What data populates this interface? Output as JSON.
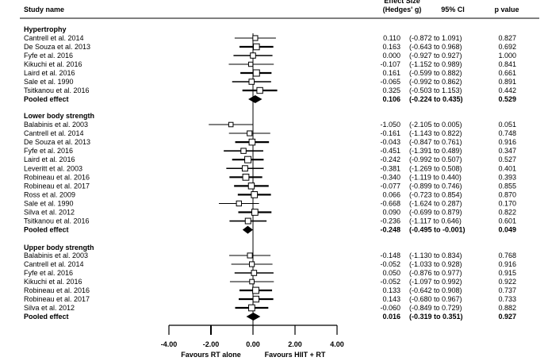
{
  "chart_data": {
    "type": "forest",
    "columns": {
      "study": "Study name",
      "effect_top": "Effect Size",
      "effect": "(Hedges' g)",
      "ci": "95% CI",
      "p": "p value"
    },
    "xlim": [
      -4,
      4
    ],
    "ticks": [
      "-4.00",
      "-2.00",
      "0.00",
      "2.00",
      "4.00"
    ],
    "tick_values": [
      -4,
      -2,
      0,
      2,
      4
    ],
    "favours_left": "Favours RT alone",
    "favours_right": "Favours HIIT + RT",
    "groups": [
      {
        "name": "Hypertrophy",
        "studies": [
          {
            "name": "Cantrell et al. 2014",
            "g": 0.11,
            "lo": -0.872,
            "hi": 1.091,
            "g_text": "0.110",
            "ci_text": "(-0.872 to 1.091)",
            "p": "0.827"
          },
          {
            "name": "De Souza et al. 2013",
            "g": 0.163,
            "lo": -0.643,
            "hi": 0.968,
            "g_text": "0.163",
            "ci_text": "(-0.643 to 0.968)",
            "p": "0.692"
          },
          {
            "name": "Fyfe et al. 2016",
            "g": 0.0,
            "lo": -0.927,
            "hi": 0.927,
            "g_text": "0.000",
            "ci_text": "(-0.927 to 0.927)",
            "p": "1.000"
          },
          {
            "name": "Kikuchi et al. 2016",
            "g": -0.107,
            "lo": -1.152,
            "hi": 0.989,
            "g_text": "-0.107",
            "ci_text": "(-1.152 to 0.989)",
            "p": "0.841"
          },
          {
            "name": "Laird et al. 2016",
            "g": 0.161,
            "lo": -0.599,
            "hi": 0.882,
            "g_text": "0.161",
            "ci_text": "(-0.599 to 0.882)",
            "p": "0.661"
          },
          {
            "name": "Sale et al. 1990",
            "g": -0.065,
            "lo": -0.992,
            "hi": 0.862,
            "g_text": "-0.065",
            "ci_text": "(-0.992 to 0.862)",
            "p": "0.891"
          },
          {
            "name": "Tsitkanou et al. 2016",
            "g": 0.325,
            "lo": -0.503,
            "hi": 1.153,
            "g_text": "0.325",
            "ci_text": "(-0.503 to 1.153)",
            "p": "0.442"
          }
        ],
        "pooled": {
          "name": "Pooled effect",
          "g": 0.106,
          "lo": -0.224,
          "hi": 0.435,
          "g_text": "0.106",
          "ci_text": "(-0.224 to 0.435)",
          "p": "0.529"
        }
      },
      {
        "name": "Lower body strength",
        "studies": [
          {
            "name": "Balabinis et al. 2003",
            "g": -1.05,
            "lo": -2.105,
            "hi": 0.005,
            "g_text": "-1.050",
            "ci_text": "(-2.105 to 0.005)",
            "p": "0.051"
          },
          {
            "name": "Cantrell et al. 2014",
            "g": -0.161,
            "lo": -1.143,
            "hi": 0.822,
            "g_text": "-0.161",
            "ci_text": "(-1.143 to 0.822)",
            "p": "0.748"
          },
          {
            "name": "De Souza et al. 2013",
            "g": -0.043,
            "lo": -0.847,
            "hi": 0.761,
            "g_text": "-0.043",
            "ci_text": "(-0.847 to 0.761)",
            "p": "0.916"
          },
          {
            "name": "Fyfe et al. 2016",
            "g": -0.451,
            "lo": -1.391,
            "hi": 0.489,
            "g_text": "-0.451",
            "ci_text": "(-1.391 to 0.489)",
            "p": "0.347"
          },
          {
            "name": "Laird et al. 2016",
            "g": -0.242,
            "lo": -0.992,
            "hi": 0.507,
            "g_text": "-0.242",
            "ci_text": "(-0.992 to 0.507)",
            "p": "0.527"
          },
          {
            "name": "Leveritt et al. 2003",
            "g": -0.381,
            "lo": -1.269,
            "hi": 0.508,
            "g_text": "-0.381",
            "ci_text": "(-1.269 to 0.508)",
            "p": "0.401"
          },
          {
            "name": "Robineau et al. 2016",
            "g": -0.34,
            "lo": -1.119,
            "hi": 0.44,
            "g_text": "-0.340",
            "ci_text": "(-1.119 to 0.440)",
            "p": "0.393"
          },
          {
            "name": "Robineau et al. 2017",
            "g": -0.077,
            "lo": -0.899,
            "hi": 0.746,
            "g_text": "-0.077",
            "ci_text": "(-0.899 to 0.746)",
            "p": "0.855"
          },
          {
            "name": "Ross et al. 2009",
            "g": 0.066,
            "lo": -0.723,
            "hi": 0.854,
            "g_text": "0.066",
            "ci_text": "(-0.723 to 0.854)",
            "p": "0.870"
          },
          {
            "name": "Sale et al. 1990",
            "g": -0.668,
            "lo": -1.624,
            "hi": 0.287,
            "g_text": "-0.668",
            "ci_text": "(-1.624 to 0.287)",
            "p": "0.170"
          },
          {
            "name": "Silva et al. 2012",
            "g": 0.09,
            "lo": -0.699,
            "hi": 0.879,
            "g_text": "0.090",
            "ci_text": "(-0.699 to 0.879)",
            "p": "0.822"
          },
          {
            "name": "Tsitkanou et al. 2016",
            "g": -0.236,
            "lo": -1.117,
            "hi": 0.646,
            "g_text": "-0.236",
            "ci_text": "(-1.117 to 0.646)",
            "p": "0.601"
          }
        ],
        "pooled": {
          "name": "Pooled effect",
          "g": -0.248,
          "lo": -0.495,
          "hi": -0.001,
          "g_text": "-0.248",
          "ci_text": "(-0.495 to -0.001)",
          "p": "0.049"
        }
      },
      {
        "name": "Upper body strength",
        "studies": [
          {
            "name": "Balabinis et al. 2003",
            "g": -0.148,
            "lo": -1.13,
            "hi": 0.834,
            "g_text": "-0.148",
            "ci_text": "(-1.130 to 0.834)",
            "p": "0.768"
          },
          {
            "name": "Cantrell et al. 2014",
            "g": -0.052,
            "lo": -1.033,
            "hi": 0.928,
            "g_text": "-0.052",
            "ci_text": "(-1.033 to 0.928)",
            "p": "0.916"
          },
          {
            "name": "Fyfe et al. 2016",
            "g": 0.05,
            "lo": -0.876,
            "hi": 0.977,
            "g_text": "0.050",
            "ci_text": "(-0.876 to 0.977)",
            "p": "0.915"
          },
          {
            "name": "Kikuchi et al. 2016",
            "g": -0.052,
            "lo": -1.097,
            "hi": 0.992,
            "g_text": "-0.052",
            "ci_text": "(-1.097 to 0.992)",
            "p": "0.922"
          },
          {
            "name": "Robineau et al. 2016",
            "g": 0.133,
            "lo": -0.642,
            "hi": 0.908,
            "g_text": "0.133",
            "ci_text": "(-0.642 to 0.908)",
            "p": "0.737"
          },
          {
            "name": "Robineau et al. 2017",
            "g": 0.143,
            "lo": -0.68,
            "hi": 0.967,
            "g_text": "0.143",
            "ci_text": "(-0.680 to 0.967)",
            "p": "0.733"
          },
          {
            "name": "Silva et al. 2012",
            "g": -0.06,
            "lo": -0.849,
            "hi": 0.729,
            "g_text": "-0.060",
            "ci_text": "(-0.849 to 0.729)",
            "p": "0.882"
          }
        ],
        "pooled": {
          "name": "Pooled effect",
          "g": 0.016,
          "lo": -0.319,
          "hi": 0.351,
          "g_text": "0.016",
          "ci_text": "(-0.319 to 0.351)",
          "p": "0.927"
        }
      }
    ]
  }
}
